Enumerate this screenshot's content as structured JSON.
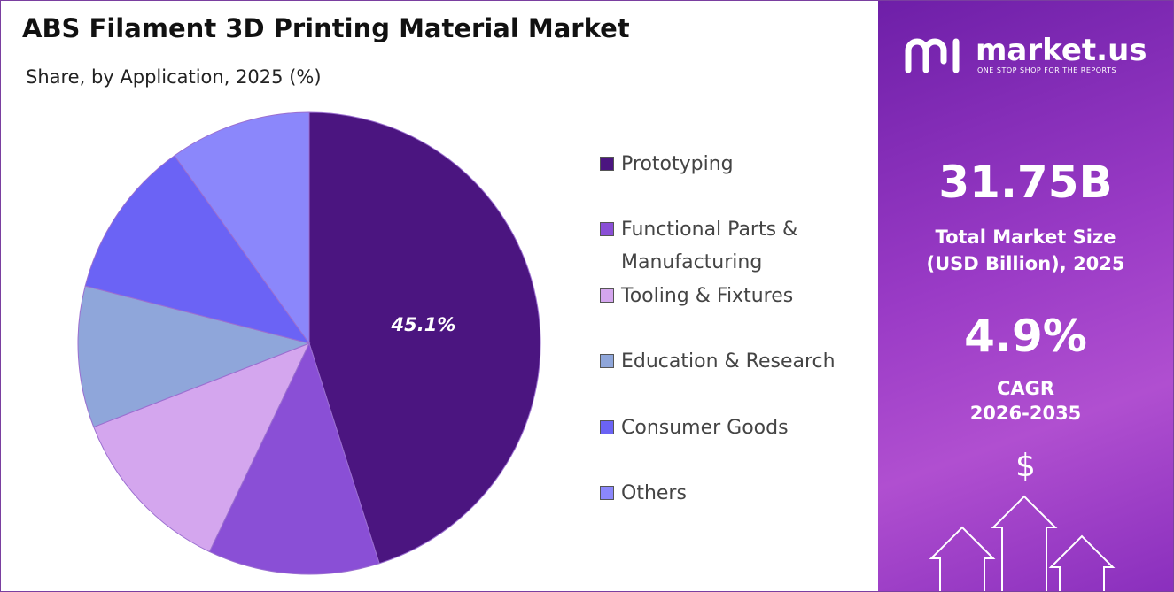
{
  "chart_data": {
    "type": "pie",
    "title": "ABS Filament 3D Printing Material Market",
    "subtitle": "Share, by Application, 2025 (%)",
    "categories": [
      "Prototyping",
      "Functional Parts & Manufacturing",
      "Tooling & Fixtures",
      "Education & Research",
      "Consumer Goods",
      "Others"
    ],
    "values": [
      45.1,
      12.0,
      12.0,
      9.9,
      11.1,
      9.9
    ],
    "value_labels": [
      "45.1%",
      null,
      null,
      null,
      null,
      null
    ],
    "colors": [
      "#4b1580",
      "#8a4fd6",
      "#d4a6ee",
      "#8fa6da",
      "#6b63f5",
      "#8b87fb"
    ],
    "legend": "right"
  },
  "panel": {
    "logo": "market.us",
    "tagline": "ONE STOP SHOP FOR THE REPORTS",
    "market_size": "31.75B",
    "market_size_label": "Total Market Size (USD Billion), 2025",
    "cagr": "4.9%",
    "cagr_label": "CAGR",
    "cagr_period": "2026-2035",
    "icon": "$"
  }
}
